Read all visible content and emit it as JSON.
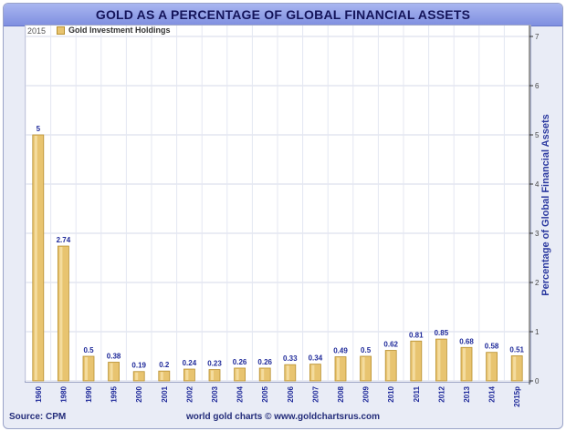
{
  "title": "GOLD AS A PERCENTAGE OF GLOBAL FINANCIAL ASSETS",
  "year_tag": "2015",
  "source": "Source: CPM",
  "credit": "world gold charts © www.goldchartsrus.com",
  "colors": {
    "bar_fill": "#e8c470",
    "bar_edge": "#b89030",
    "label_color": "#1f2a9a",
    "title_bar": "#8f9de6"
  },
  "chart_data": {
    "type": "bar",
    "title": "GOLD AS A PERCENTAGE OF GLOBAL FINANCIAL ASSETS",
    "xlabel": "",
    "ylabel": "Percentage of Global Financial Assets",
    "ylim": [
      0,
      7
    ],
    "yticks": [
      0,
      1,
      2,
      3,
      4,
      5,
      6,
      7
    ],
    "y_axis_side": "right",
    "grid": true,
    "legend_position": "top-left",
    "categories": [
      "1960",
      "1980",
      "1990",
      "1995",
      "2000",
      "2001",
      "2002",
      "2003",
      "2004",
      "2005",
      "2006",
      "2007",
      "2008",
      "2009",
      "2010",
      "2011",
      "2012",
      "2013",
      "2014",
      "2015p"
    ],
    "series": [
      {
        "name": "Gold Investment Holdings",
        "values": [
          5,
          2.74,
          0.5,
          0.38,
          0.19,
          0.2,
          0.24,
          0.23,
          0.26,
          0.26,
          0.33,
          0.34,
          0.49,
          0.5,
          0.62,
          0.81,
          0.85,
          0.68,
          0.58,
          0.51
        ],
        "data_labels": [
          "5",
          "2.74",
          "0.5",
          "0.38",
          "0.19",
          "0.2",
          "0.24",
          "0.23",
          "0.26",
          "0.26",
          "0.33",
          "0.34",
          "0.49",
          "0.5",
          "0.62",
          "0.81",
          "0.85",
          "0.68",
          "0.58",
          "0.51"
        ]
      }
    ]
  }
}
